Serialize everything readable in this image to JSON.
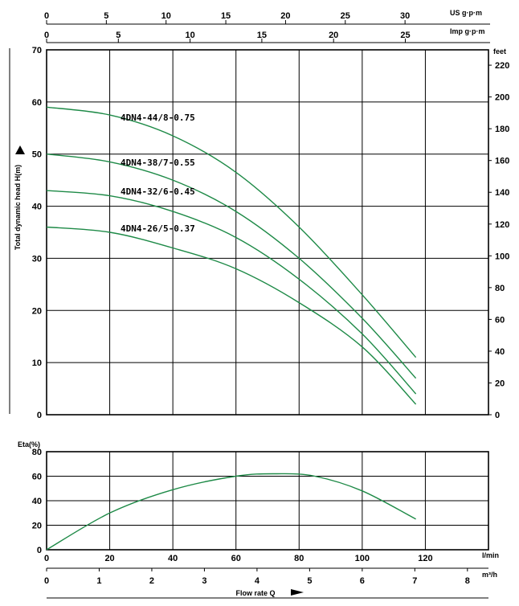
{
  "chart_data": [
    {
      "type": "line",
      "title": "",
      "ylabel": "Total dynamic head H(m)",
      "ylim": [
        0,
        70
      ],
      "yticks": [
        0,
        10,
        20,
        30,
        40,
        50,
        60,
        70
      ],
      "secondary_y": {
        "label": "feet",
        "ticks": [
          0,
          20,
          40,
          60,
          80,
          100,
          120,
          140,
          160,
          180,
          200,
          220
        ]
      },
      "top_axes": [
        {
          "label": "US g·p·m",
          "ticks": [
            0,
            5,
            10,
            15,
            20,
            25,
            30
          ]
        },
        {
          "label": "Imp g·p·m",
          "ticks": [
            0,
            5,
            10,
            15,
            20,
            25
          ]
        }
      ],
      "x_unit": "l/min",
      "xlim": [
        0,
        140
      ],
      "grid": true,
      "series": [
        {
          "name": "4DN4-44/8-0.75",
          "x": [
            0,
            20,
            40,
            60,
            80,
            100,
            117
          ],
          "y": [
            59,
            57.5,
            53.5,
            46.5,
            36,
            23,
            11
          ]
        },
        {
          "name": "4DN4-38/7-0.55",
          "x": [
            0,
            20,
            40,
            60,
            80,
            100,
            117
          ],
          "y": [
            50,
            48.5,
            45,
            39,
            30,
            18.5,
            7
          ]
        },
        {
          "name": "4DN4-32/6-0.45",
          "x": [
            0,
            20,
            40,
            60,
            80,
            100,
            117
          ],
          "y": [
            43,
            42,
            39,
            34,
            26,
            15.5,
            4
          ]
        },
        {
          "name": "4DN4-26/5-0.37",
          "x": [
            0,
            20,
            40,
            60,
            80,
            100,
            117
          ],
          "y": [
            36,
            35,
            32,
            28,
            21.5,
            13,
            2
          ]
        }
      ]
    },
    {
      "type": "line",
      "title": "",
      "ylabel": "Eta(%)",
      "ylim": [
        0,
        80
      ],
      "yticks": [
        0,
        20,
        40,
        60,
        80
      ],
      "grid": true,
      "x_label": "Flow rate Q",
      "x_axes": [
        {
          "unit": "l/min",
          "ticks": [
            0,
            20,
            40,
            60,
            80,
            100,
            120
          ],
          "range": [
            0,
            140
          ]
        },
        {
          "unit": "m³/h",
          "ticks": [
            0,
            1,
            2,
            3,
            4,
            5,
            6,
            7,
            8
          ],
          "range": [
            0,
            8.4
          ]
        }
      ],
      "series": [
        {
          "name": "",
          "x": [
            0,
            20,
            40,
            60,
            73,
            85,
            100,
            117
          ],
          "y": [
            0,
            30,
            49,
            60,
            62,
            60,
            48,
            25
          ]
        }
      ]
    }
  ]
}
